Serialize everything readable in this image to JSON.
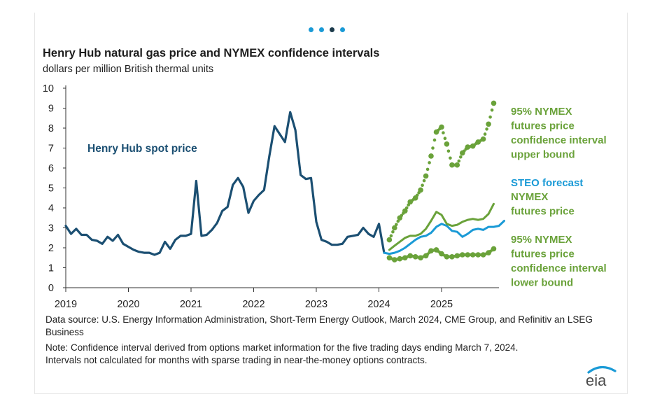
{
  "carousel": {
    "dots": [
      false,
      false,
      true,
      false
    ]
  },
  "header": {
    "title": "Henry Hub natural gas price and NYMEX confidence intervals",
    "subtitle": "dollars per million British thermal units"
  },
  "footer": {
    "source": "Data source: U.S. Energy Information Administration, Short-Term Energy Outlook, March 2024, CME Group, and Refinitiv an LSEG Business",
    "note": "Note: Confidence interval derived from options market information for the five trading days ending March 7, 2024. Intervals not calculated for months with sparse trading in near-the-money options contracts.",
    "logo_text": "eia"
  },
  "colors": {
    "spot": "#1b4f72",
    "steo": "#1a9ad6",
    "green": "#6aa23a",
    "axis": "#333333",
    "logo": "#1a9ad6"
  },
  "chart_data": {
    "type": "line",
    "title": "Henry Hub natural gas price and NYMEX confidence intervals",
    "ylabel": "dollars per million British thermal units",
    "xlim": [
      "2019-01",
      "2025-12"
    ],
    "ylim": [
      0,
      10
    ],
    "yticks": [
      0,
      1,
      2,
      3,
      4,
      5,
      6,
      7,
      8,
      9,
      10
    ],
    "xticks": [
      "2019",
      "2020",
      "2021",
      "2022",
      "2023",
      "2024",
      "2025"
    ],
    "grid": false,
    "series": [
      {
        "name": "Henry Hub spot price",
        "style": "solid",
        "start": "2019-01",
        "values": [
          3.1,
          2.7,
          2.95,
          2.65,
          2.65,
          2.4,
          2.35,
          2.2,
          2.55,
          2.35,
          2.65,
          2.2,
          2.05,
          1.9,
          1.8,
          1.75,
          1.75,
          1.65,
          1.75,
          2.3,
          1.95,
          2.4,
          2.6,
          2.6,
          2.7,
          5.35,
          2.6,
          2.65,
          2.9,
          3.25,
          3.85,
          4.05,
          5.15,
          5.5,
          5.05,
          3.75,
          4.35,
          4.65,
          4.9,
          6.6,
          8.1,
          7.7,
          7.3,
          8.8,
          7.9,
          5.65,
          5.45,
          5.5,
          3.3,
          2.4,
          2.3,
          2.15,
          2.15,
          2.2,
          2.55,
          2.6,
          2.65,
          3.0,
          2.7,
          2.55,
          3.2,
          1.75
        ]
      },
      {
        "name": "STEO forecast",
        "style": "solid",
        "start": "2024-02",
        "values": [
          1.75,
          1.7,
          1.75,
          1.85,
          2.0,
          2.2,
          2.4,
          2.55,
          2.6,
          2.75,
          3.05,
          3.2,
          3.1,
          2.85,
          2.8,
          2.55,
          2.7,
          2.9,
          2.95,
          2.9,
          3.05,
          3.05,
          3.1,
          3.35
        ]
      },
      {
        "name": "NYMEX futures price",
        "style": "solid",
        "start": "2024-03",
        "values": [
          1.9,
          2.1,
          2.3,
          2.5,
          2.6,
          2.6,
          2.7,
          2.95,
          3.35,
          3.8,
          3.65,
          3.2,
          3.1,
          3.15,
          3.3,
          3.4,
          3.45,
          3.4,
          3.45,
          3.7,
          4.2
        ]
      },
      {
        "name": "95% NYMEX futures price confidence interval upper bound",
        "style": "dotted",
        "start": "2024-03",
        "values": [
          2.4,
          3.0,
          3.5,
          3.85,
          4.3,
          4.5,
          4.9,
          5.6,
          6.6,
          7.8,
          8.05,
          7.2,
          6.15,
          6.15,
          6.75,
          7.05,
          7.1,
          7.3,
          7.45,
          8.2,
          9.25
        ]
      },
      {
        "name": "95% NYMEX futures price confidence interval lower bound",
        "style": "dotted",
        "start": "2024-03",
        "values": [
          1.5,
          1.4,
          1.45,
          1.5,
          1.6,
          1.55,
          1.5,
          1.6,
          1.85,
          1.9,
          1.7,
          1.55,
          1.55,
          1.6,
          1.65,
          1.65,
          1.65,
          1.65,
          1.65,
          1.75,
          1.95
        ]
      }
    ],
    "annotations": [
      {
        "text": "Henry Hub spot price",
        "series": "Henry Hub spot price"
      },
      {
        "text": "95% NYMEX futures price confidence interval upper bound",
        "lines": [
          "95% NYMEX",
          "futures price",
          "confidence interval",
          "upper bound"
        ]
      },
      {
        "text": "STEO forecast",
        "lines": [
          "STEO forecast"
        ]
      },
      {
        "text": "NYMEX futures price",
        "lines": [
          "NYMEX",
          "futures price"
        ]
      },
      {
        "text": "95% NYMEX futures price confidence interval lower bound",
        "lines": [
          "95% NYMEX",
          "futures price",
          "confidence interval",
          "lower bound"
        ]
      }
    ]
  }
}
